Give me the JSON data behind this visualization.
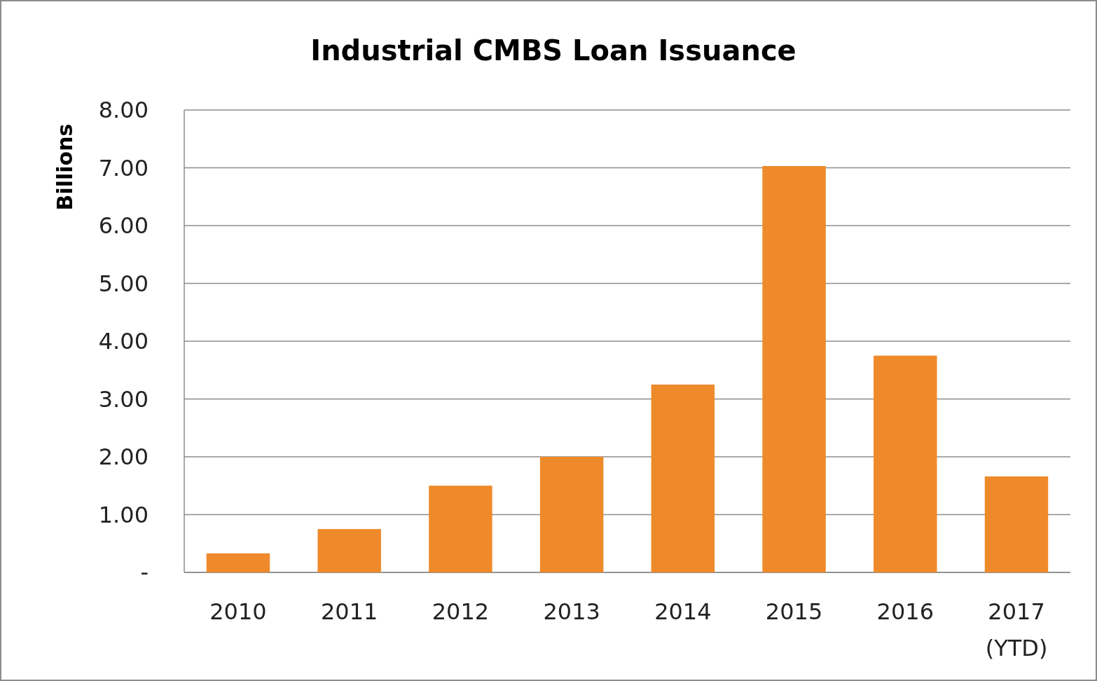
{
  "chart_data": {
    "type": "bar",
    "title": "Industrial CMBS Loan Issuance",
    "ylabel": "Billions",
    "categories": [
      "2010",
      "2011",
      "2012",
      "2013",
      "2014",
      "2015",
      "2016",
      "2017 (YTD)"
    ],
    "values": [
      0.33,
      0.75,
      1.5,
      2.0,
      3.25,
      7.03,
      3.75,
      1.66
    ],
    "color": "#ee8a2a",
    "ylim": [
      0,
      8
    ],
    "yticks": [
      {
        "value": 0,
        "label": "-"
      },
      {
        "value": 1,
        "label": "1.00"
      },
      {
        "value": 2,
        "label": "2.00"
      },
      {
        "value": 3,
        "label": "3.00"
      },
      {
        "value": 4,
        "label": "4.00"
      },
      {
        "value": 5,
        "label": "5.00"
      },
      {
        "value": 6,
        "label": "6.00"
      },
      {
        "value": 7,
        "label": "7.00"
      },
      {
        "value": 8,
        "label": "8.00"
      }
    ],
    "grid": "y"
  }
}
